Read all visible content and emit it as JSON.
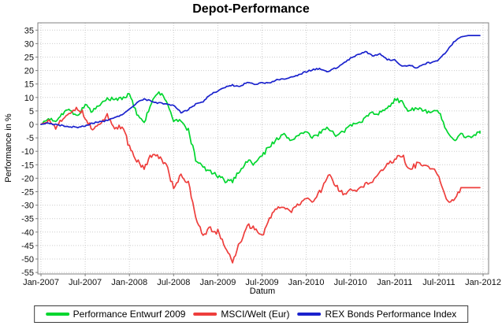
{
  "title": "Depot-Performance",
  "chart_data": {
    "type": "line",
    "title": "Depot-Performance",
    "xlabel": "Datum",
    "ylabel": "Performance in %",
    "ylim": [
      -55,
      35
    ],
    "y_tick_step": 5,
    "y_ticks": [
      "35",
      "30",
      "25",
      "20",
      "15",
      "10",
      "5",
      "0",
      "-5",
      "-10",
      "-15",
      "-20",
      "-25",
      "-30",
      "-35",
      "-40",
      "-45",
      "-50",
      "-55"
    ],
    "x_ticks": [
      "Jan-2007",
      "Jul-2007",
      "Jan-2008",
      "Jul-2008",
      "Jan-2009",
      "Jul-2009",
      "Jan-2010",
      "Jul-2010",
      "Jan-2011",
      "Jul-2011",
      "Jan-2012"
    ],
    "x_unit": "months from Jan-2007, monthly samples of daily series",
    "grid": true,
    "legend_position": "bottom",
    "series": [
      {
        "name": "Performance Entwurf 2009",
        "color": "#00d62e",
        "values": [
          0,
          2,
          1.5,
          4.5,
          5.5,
          3,
          7.5,
          4.5,
          7,
          9.5,
          9,
          10,
          11,
          4,
          1,
          8,
          12,
          9,
          1.5,
          1,
          -2,
          -13,
          -16,
          -17.5,
          -19.5,
          -21,
          -21,
          -17,
          -13.5,
          -14.5,
          -11.5,
          -8,
          -5.5,
          -4,
          -6,
          -3.5,
          -3,
          -5,
          -2.5,
          -1,
          -4.5,
          -3,
          -0.5,
          1,
          2.5,
          4.5,
          4,
          6.5,
          9,
          8,
          5,
          6.5,
          4.5,
          4.5,
          5,
          -2.5,
          -6,
          -3,
          -5,
          -3.5,
          -2.5
        ]
      },
      {
        "name": "MSCI/Welt (Eur)",
        "color": "#ee3e3c",
        "values": [
          0,
          1.5,
          -1,
          2.5,
          5,
          6,
          3,
          -2.5,
          0.5,
          3,
          -1.5,
          -1,
          -8,
          -14,
          -16,
          -11.5,
          -12,
          -15,
          -24,
          -19,
          -22,
          -34,
          -41,
          -39,
          -40,
          -46,
          -51,
          -44,
          -37.5,
          -39,
          -41,
          -35,
          -31.5,
          -30.5,
          -32.5,
          -29.5,
          -27.5,
          -28.5,
          -24.5,
          -19,
          -22.5,
          -26,
          -23.5,
          -24.5,
          -22,
          -21.5,
          -18,
          -15,
          -13,
          -11.5,
          -17,
          -14.5,
          -15.5,
          -16.5,
          -19,
          -28,
          -28.5,
          -23.5,
          -23.5,
          -23.5,
          -23.5
        ]
      },
      {
        "name": "REX Bonds Performance Index",
        "color": "#1a22cd",
        "values": [
          0,
          0.5,
          0,
          -0.5,
          -1,
          -1,
          -0.5,
          0.5,
          1,
          1.5,
          2.5,
          3.5,
          5.5,
          8,
          9.5,
          8.5,
          8,
          7.5,
          7,
          4.5,
          5.5,
          7.5,
          8.5,
          11,
          12.5,
          14,
          14.5,
          14,
          15.5,
          15,
          15.5,
          15.5,
          16.5,
          17,
          17.5,
          18.5,
          19.5,
          20.5,
          20.5,
          19.5,
          21,
          22.5,
          24.5,
          26,
          27,
          25.5,
          26,
          24,
          24,
          21.5,
          22,
          21,
          22.5,
          23,
          24,
          27,
          30.5,
          32.5,
          33,
          33,
          33
        ]
      }
    ]
  }
}
